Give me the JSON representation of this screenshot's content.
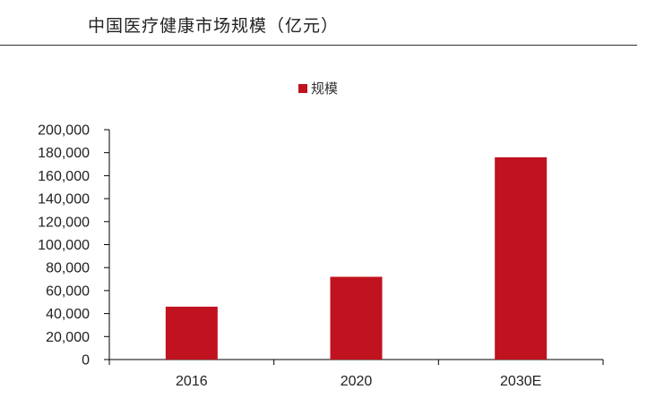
{
  "colors": {
    "bar": "#C0121F",
    "axis": "#000000",
    "text": "#222222"
  },
  "chart_data": {
    "type": "bar",
    "title": "中国医疗健康市场规模（亿元）",
    "categories": [
      "2016",
      "2020",
      "2030E"
    ],
    "series": [
      {
        "name": "规模",
        "values": [
          46000,
          72000,
          176000
        ]
      }
    ],
    "ylim": [
      0,
      200000
    ],
    "yticks": [
      "0",
      "20,000",
      "40,000",
      "60,000",
      "80,000",
      "100,000",
      "120,000",
      "140,000",
      "160,000",
      "180,000",
      "200,000"
    ],
    "ytick_values": [
      0,
      20000,
      40000,
      60000,
      80000,
      100000,
      120000,
      140000,
      160000,
      180000,
      200000
    ],
    "xlabel": "",
    "ylabel": "",
    "grid": false,
    "legend_position": "top-center"
  }
}
